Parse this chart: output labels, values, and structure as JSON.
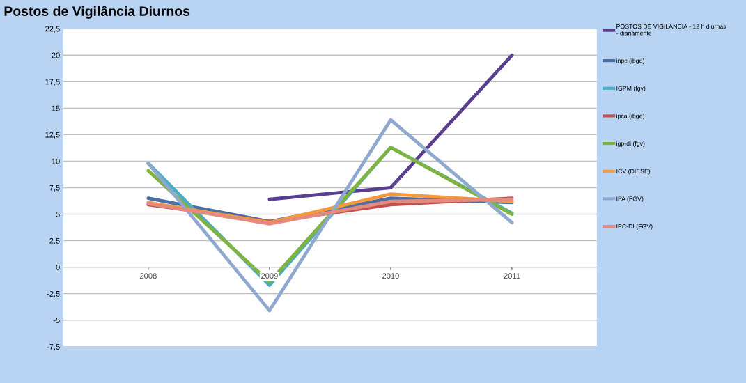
{
  "chart_data": {
    "type": "line",
    "title": "Postos de Vigilância Diurnos",
    "categories": [
      "2008",
      "2009",
      "2010",
      "2011"
    ],
    "series": [
      {
        "name": "POSTOS DE VIGILANCIA - 12 h diurnas - diariamente",
        "color": "#5b3f8f",
        "values": [
          null,
          6.4,
          7.5,
          20
        ]
      },
      {
        "name": "inpc (ibge)",
        "color": "#4a6fa5",
        "values": [
          6.5,
          4.3,
          6.5,
          6.1
        ]
      },
      {
        "name": "IGPM (fgv)",
        "color": "#4aacc6",
        "values": [
          9.8,
          -1.7,
          11.3,
          5.1
        ]
      },
      {
        "name": "ipca (ibge)",
        "color": "#c0504d",
        "values": [
          5.9,
          4.3,
          5.9,
          6.5
        ]
      },
      {
        "name": "igp-di (fgv)",
        "color": "#7fb23f",
        "values": [
          9.1,
          -1.4,
          11.3,
          5.0
        ]
      },
      {
        "name": "ICV (DIESE)",
        "color": "#f59a3c",
        "values": [
          6.1,
          4.2,
          6.9,
          6.2
        ]
      },
      {
        "name": "IPA (FGV)",
        "color": "#8fa8cf",
        "values": [
          9.8,
          -4.1,
          13.9,
          4.2
        ]
      },
      {
        "name": "IPC-DI (FGV)",
        "color": "#e48a7f",
        "values": [
          6.0,
          4.1,
          6.2,
          6.4
        ]
      }
    ],
    "ylim": [
      -7.5,
      22.5
    ],
    "yticks": [
      {
        "value": -7.5,
        "label": "-7,5"
      },
      -5,
      {
        "value": -2.5,
        "label": "-2,5"
      },
      0,
      {
        "value": 2.5,
        "label": "2,5"
      },
      5,
      {
        "value": 7.5,
        "label": "7,5"
      },
      10,
      {
        "value": 12.5,
        "label": "12,5"
      },
      15,
      {
        "value": 17.5,
        "label": "17,5"
      },
      20,
      {
        "value": 22.5,
        "label": "22,5"
      }
    ],
    "grid": "y",
    "legend": "right",
    "marker": "none",
    "line_style": "solid"
  }
}
